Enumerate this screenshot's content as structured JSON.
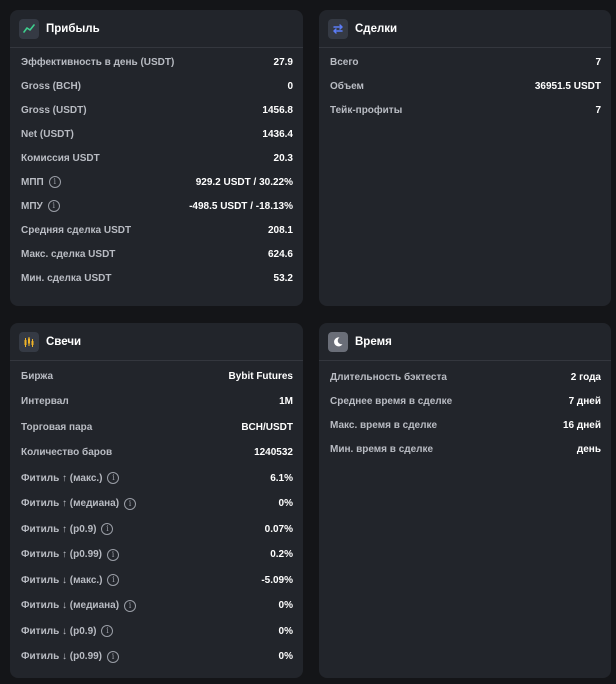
{
  "profit": {
    "title": "Прибыль",
    "icon": "trend-line-icon",
    "rows": [
      {
        "label": "Эффективность в день (USDT)",
        "value": "27.9",
        "info": false
      },
      {
        "label": "Gross (BCH)",
        "value": "0",
        "info": false
      },
      {
        "label": "Gross (USDT)",
        "value": "1456.8",
        "info": false
      },
      {
        "label": "Net (USDT)",
        "value": "1436.4",
        "info": false
      },
      {
        "label": "Комиссия USDT",
        "value": "20.3",
        "info": false
      },
      {
        "label": "МПП",
        "value": "929.2 USDT / 30.22%",
        "info": true
      },
      {
        "label": "МПУ",
        "value": "-498.5 USDT / -18.13%",
        "info": true
      },
      {
        "label": "Средняя сделка USDT",
        "value": "208.1",
        "info": false
      },
      {
        "label": "Макс. сделка USDT",
        "value": "624.6",
        "info": false
      },
      {
        "label": "Мин. сделка USDT",
        "value": "53.2",
        "info": false
      }
    ]
  },
  "trades": {
    "title": "Сделки",
    "icon": "swap-arrows-icon",
    "rows": [
      {
        "label": "Всего",
        "value": "7",
        "info": false
      },
      {
        "label": "Объем",
        "value": "36951.5 USDT",
        "info": false
      },
      {
        "label": "Тейк-профиты",
        "value": "7",
        "info": false
      }
    ]
  },
  "candles": {
    "title": "Свечи",
    "icon": "candlestick-icon",
    "rows": [
      {
        "label": "Биржа",
        "value": "Bybit Futures",
        "info": false
      },
      {
        "label": "Интервал",
        "value": "1M",
        "info": false
      },
      {
        "label": "Торговая пара",
        "value": "BCH/USDT",
        "info": false
      },
      {
        "label": "Количество баров",
        "value": "1240532",
        "info": false
      },
      {
        "label": "Фитиль ↑ (макс.)",
        "value": "6.1%",
        "info": true
      },
      {
        "label": "Фитиль ↑ (медиана)",
        "value": "0%",
        "info": true
      },
      {
        "label": "Фитиль ↑ (p0.9)",
        "value": "0.07%",
        "info": true
      },
      {
        "label": "Фитиль ↑ (p0.99)",
        "value": "0.2%",
        "info": true
      },
      {
        "label": "Фитиль ↓ (макс.)",
        "value": "-5.09%",
        "info": true
      },
      {
        "label": "Фитиль ↓ (медиана)",
        "value": "0%",
        "info": true
      },
      {
        "label": "Фитиль ↓ (p0.9)",
        "value": "0%",
        "info": true
      },
      {
        "label": "Фитиль ↓ (p0.99)",
        "value": "0%",
        "info": true
      }
    ]
  },
  "time": {
    "title": "Время",
    "icon": "moon-icon",
    "rows": [
      {
        "label": "Длительность бэктеста",
        "value": "2 года",
        "info": false
      },
      {
        "label": "Среднее время в сделке",
        "value": "7 дней",
        "info": false
      },
      {
        "label": "Макс. время в сделке",
        "value": "16 дней",
        "info": false
      },
      {
        "label": "Мин. время в сделке",
        "value": "день",
        "info": false
      }
    ]
  },
  "colors": {
    "background": "#141518",
    "card": "#22252b",
    "trend": "#3ecf8e",
    "swap": "#5b7cf7",
    "candle": "#f0b429",
    "moon": "#c9ccd3"
  }
}
